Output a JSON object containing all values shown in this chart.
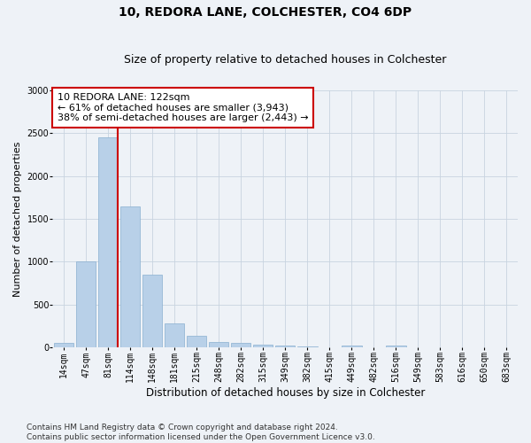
{
  "title1": "10, REDORA LANE, COLCHESTER, CO4 6DP",
  "title2": "Size of property relative to detached houses in Colchester",
  "xlabel": "Distribution of detached houses by size in Colchester",
  "ylabel": "Number of detached properties",
  "footnote": "Contains HM Land Registry data © Crown copyright and database right 2024.\nContains public sector information licensed under the Open Government Licence v3.0.",
  "categories": [
    "14sqm",
    "47sqm",
    "81sqm",
    "114sqm",
    "148sqm",
    "181sqm",
    "215sqm",
    "248sqm",
    "282sqm",
    "315sqm",
    "349sqm",
    "382sqm",
    "415sqm",
    "449sqm",
    "482sqm",
    "516sqm",
    "549sqm",
    "583sqm",
    "616sqm",
    "650sqm",
    "683sqm"
  ],
  "values": [
    50,
    1000,
    2450,
    1650,
    850,
    280,
    130,
    60,
    50,
    35,
    25,
    10,
    5,
    20,
    0,
    20,
    0,
    0,
    0,
    0,
    0
  ],
  "bar_color": "#b8d0e8",
  "bar_edge_color": "#8ab0d0",
  "vline_x_index": 2,
  "vline_side": "right",
  "vline_color": "#cc0000",
  "ylim": [
    0,
    3000
  ],
  "yticks": [
    0,
    500,
    1000,
    1500,
    2000,
    2500,
    3000
  ],
  "annotation_title": "10 REDORA LANE: 122sqm",
  "annotation_line1": "← 61% of detached houses are smaller (3,943)",
  "annotation_line2": "38% of semi-detached houses are larger (2,443) →",
  "annotation_box_color": "#ffffff",
  "annotation_box_edge": "#cc0000",
  "bg_color": "#eef2f7",
  "axes_bg_color": "#eef2f7",
  "grid_color": "#c8d4e0",
  "title1_fontsize": 10,
  "title2_fontsize": 9,
  "xlabel_fontsize": 8.5,
  "ylabel_fontsize": 8,
  "footnote_fontsize": 6.5,
  "tick_fontsize": 7,
  "annot_fontsize": 8
}
